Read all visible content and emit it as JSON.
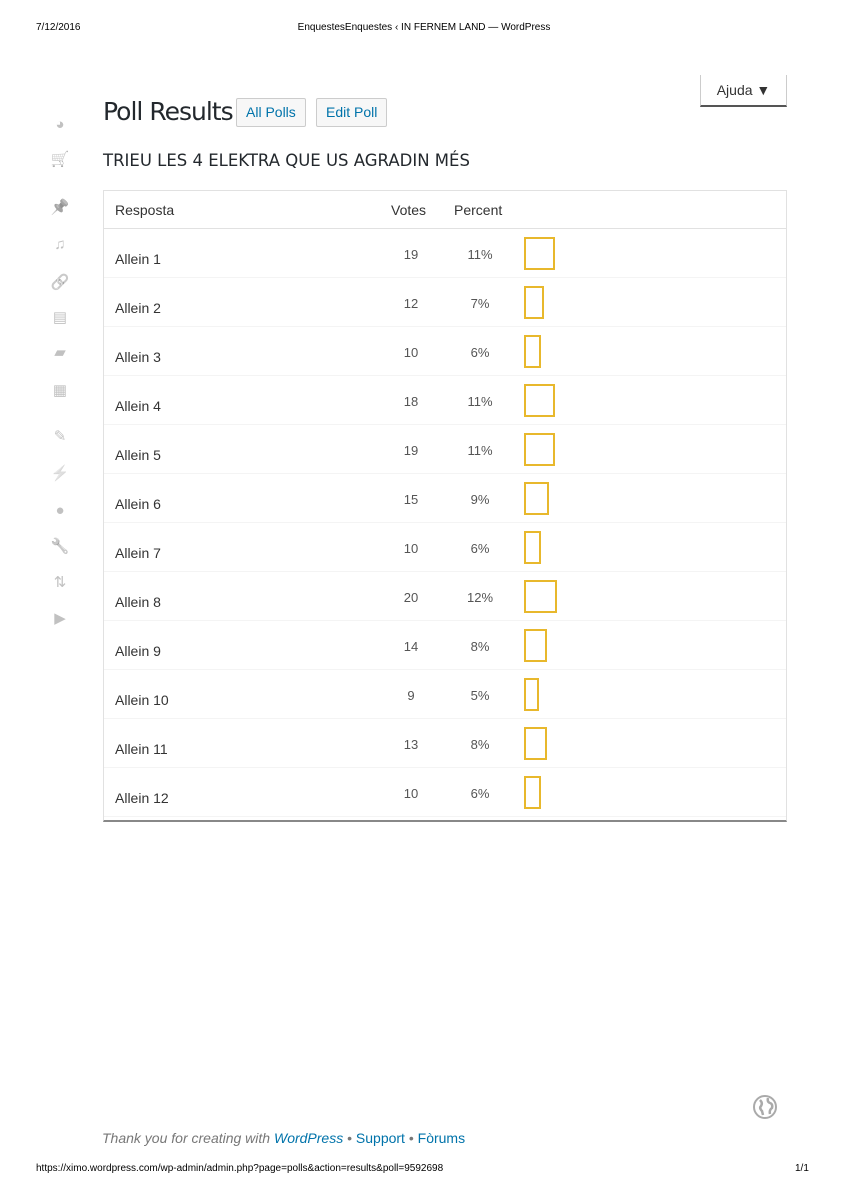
{
  "print_header": {
    "date": "7/12/2016",
    "title": "EnquestesEnquestes ‹ IN FERNEM LAND — WordPress"
  },
  "print_footer": {
    "url": "https://ximo.wordpress.com/wp-admin/admin.php?page=polls&action=results&poll=9592698",
    "page": "1/1"
  },
  "help_button": "Ajuda ▼",
  "page_title": "Poll Results",
  "buttons": {
    "all_polls": "All Polls",
    "edit_poll": "Edit Poll"
  },
  "question": "TRIEU LES 4 ELEKTRA QUE US AGRADIN MÉS",
  "table": {
    "headers": {
      "answer": "Resposta",
      "votes": "Votes",
      "percent": "Percent"
    },
    "bar_color": "#e8b82c",
    "rows": [
      {
        "label": "Allein 1",
        "votes": "19",
        "percent": "11%",
        "pct": 11
      },
      {
        "label": "Allein 2",
        "votes": "12",
        "percent": "7%",
        "pct": 7
      },
      {
        "label": "Allein 3",
        "votes": "10",
        "percent": "6%",
        "pct": 6
      },
      {
        "label": "Allein 4",
        "votes": "18",
        "percent": "11%",
        "pct": 11
      },
      {
        "label": "Allein 5",
        "votes": "19",
        "percent": "11%",
        "pct": 11
      },
      {
        "label": "Allein 6",
        "votes": "15",
        "percent": "9%",
        "pct": 9
      },
      {
        "label": "Allein 7",
        "votes": "10",
        "percent": "6%",
        "pct": 6
      },
      {
        "label": "Allein 8",
        "votes": "20",
        "percent": "12%",
        "pct": 12
      },
      {
        "label": "Allein 9",
        "votes": "14",
        "percent": "8%",
        "pct": 8
      },
      {
        "label": "Allein 10",
        "votes": "9",
        "percent": "5%",
        "pct": 5
      },
      {
        "label": "Allein 11",
        "votes": "13",
        "percent": "8%",
        "pct": 8
      },
      {
        "label": "Allein 12",
        "votes": "10",
        "percent": "6%",
        "pct": 6
      }
    ]
  },
  "footer": {
    "thanks": "Thank you for creating with ",
    "wordpress": "WordPress",
    "sep": " • ",
    "support": "Support",
    "forums": "Fòrums"
  },
  "sidebar_icons": [
    "dashboard-icon",
    "cart-icon",
    "pin-icon",
    "media-icon",
    "link-icon",
    "pages-icon",
    "comments-icon",
    "feedback-icon",
    "appearance-icon",
    "plugins-icon",
    "users-icon",
    "tools-icon",
    "settings-icon",
    "play-icon"
  ]
}
